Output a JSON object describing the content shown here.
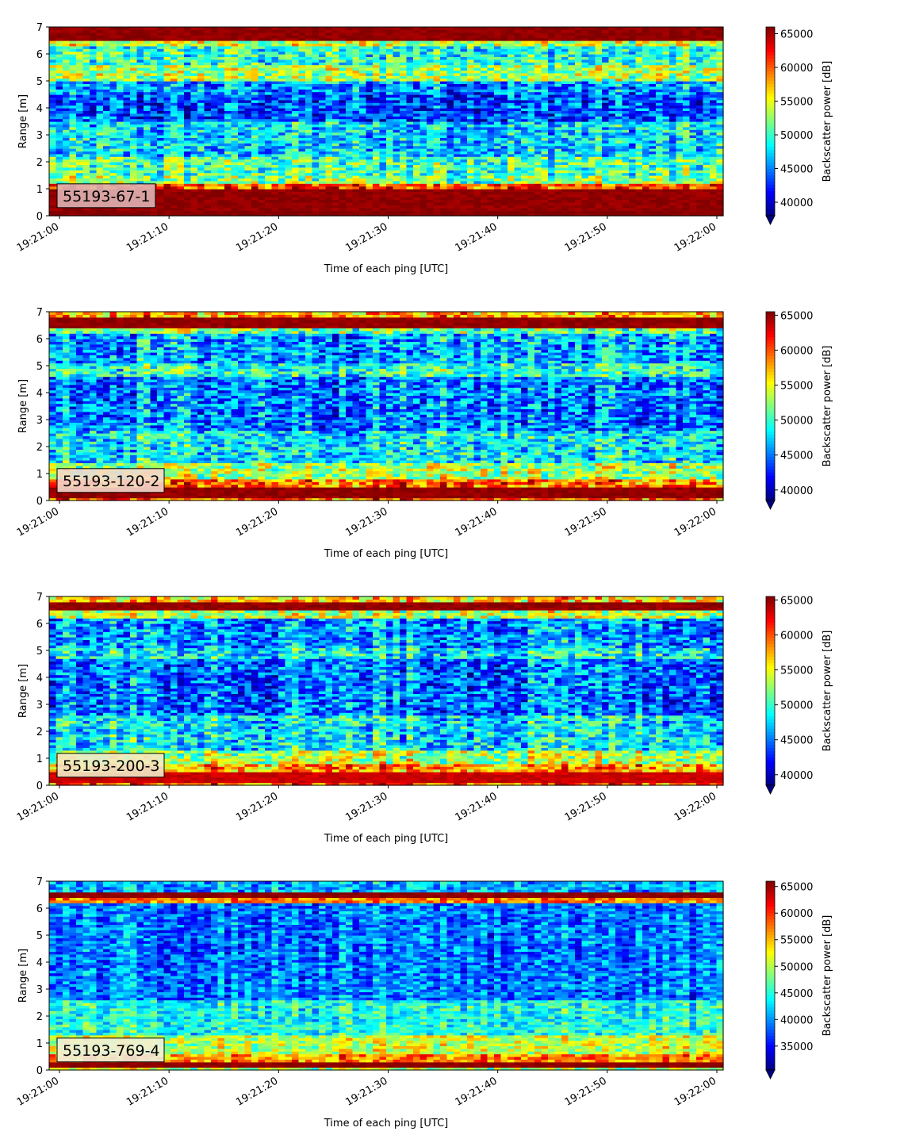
{
  "figure": {
    "colormap": "jet"
  },
  "chart_data": [
    {
      "type": "heatmap",
      "annotation": "55193-67-1",
      "annotation_box_color": "#dfb2b2",
      "xlabel": "Time of each ping [UTC]",
      "ylabel": "Range [m]",
      "ylim": [
        0,
        7
      ],
      "xlim": [
        "19:21:00",
        "19:22:00"
      ],
      "y_ticks": [
        "0",
        "1",
        "2",
        "3",
        "4",
        "5",
        "6",
        "7"
      ],
      "x_ticks": [
        "19:21:00",
        "19:21:10",
        "19:21:20",
        "19:21:30",
        "19:21:40",
        "19:21:50",
        "19:22:00"
      ],
      "colorbar": {
        "label": "Backscatter power [dB]",
        "range": [
          38000,
          66000
        ],
        "extend": "min",
        "ticks": [
          "40000",
          "45000",
          "50000",
          "55000",
          "60000",
          "65000"
        ]
      },
      "profile": [
        {
          "range": [
            0.0,
            0.2
          ],
          "value": 66000
        },
        {
          "range": [
            0.2,
            1.0
          ],
          "value": 65500
        },
        {
          "range": [
            1.0,
            1.2
          ],
          "value": 60500
        },
        {
          "range": [
            1.2,
            1.5
          ],
          "value": 52000
        },
        {
          "range": [
            1.5,
            2.2
          ],
          "value": 50500
        },
        {
          "range": [
            2.2,
            3.5
          ],
          "value": 47500
        },
        {
          "range": [
            3.5,
            4.5
          ],
          "value": 43500
        },
        {
          "range": [
            4.5,
            5.0
          ],
          "value": 45500
        },
        {
          "range": [
            5.0,
            5.6
          ],
          "value": 53000
        },
        {
          "range": [
            5.6,
            6.3
          ],
          "value": 49500
        },
        {
          "range": [
            6.3,
            6.5
          ],
          "value": 54000
        },
        {
          "range": [
            6.5,
            7.0
          ],
          "value": 65500
        }
      ]
    },
    {
      "type": "heatmap",
      "annotation": "55193-120-2",
      "annotation_box_color": "#f4d9cc",
      "xlabel": "Time of each ping [UTC]",
      "ylabel": "Range [m]",
      "ylim": [
        0,
        7
      ],
      "xlim": [
        "19:21:00",
        "19:22:00"
      ],
      "y_ticks": [
        "0",
        "1",
        "2",
        "3",
        "4",
        "5",
        "6",
        "7"
      ],
      "x_ticks": [
        "19:21:00",
        "19:21:10",
        "19:21:20",
        "19:21:30",
        "19:21:40",
        "19:21:50",
        "19:22:00"
      ],
      "colorbar": {
        "label": "Backscatter power [dB]",
        "range": [
          38500,
          65500
        ],
        "extend": "min",
        "ticks": [
          "40000",
          "45000",
          "50000",
          "55000",
          "60000",
          "65000"
        ]
      },
      "profile": [
        {
          "range": [
            0.0,
            0.1
          ],
          "value": 60000
        },
        {
          "range": [
            0.1,
            0.5
          ],
          "value": 65000
        },
        {
          "range": [
            0.5,
            0.8
          ],
          "value": 59500
        },
        {
          "range": [
            0.8,
            1.4
          ],
          "value": 53500
        },
        {
          "range": [
            1.4,
            2.6
          ],
          "value": 48500
        },
        {
          "range": [
            2.6,
            4.6
          ],
          "value": 45500
        },
        {
          "range": [
            4.6,
            5.1
          ],
          "value": 50000
        },
        {
          "range": [
            5.1,
            6.2
          ],
          "value": 46500
        },
        {
          "range": [
            6.2,
            6.4
          ],
          "value": 52000
        },
        {
          "range": [
            6.4,
            6.8
          ],
          "value": 65000
        },
        {
          "range": [
            6.8,
            7.0
          ],
          "value": 58000
        }
      ]
    },
    {
      "type": "heatmap",
      "annotation": "55193-200-3",
      "annotation_box_color": "#f1ebc8",
      "xlabel": "Time of each ping [UTC]",
      "ylabel": "Range [m]",
      "ylim": [
        0,
        7
      ],
      "xlim": [
        "19:21:00",
        "19:22:00"
      ],
      "y_ticks": [
        "0",
        "1",
        "2",
        "3",
        "4",
        "5",
        "6",
        "7"
      ],
      "x_ticks": [
        "19:21:00",
        "19:21:10",
        "19:21:20",
        "19:21:30",
        "19:21:40",
        "19:21:50",
        "19:22:00"
      ],
      "colorbar": {
        "label": "Backscatter power [dB]",
        "range": [
          38500,
          65500
        ],
        "extend": "min",
        "ticks": [
          "40000",
          "45000",
          "50000",
          "55000",
          "60000",
          "65000"
        ]
      },
      "profile": [
        {
          "range": [
            0.0,
            0.15
          ],
          "value": 60000
        },
        {
          "range": [
            0.15,
            0.5
          ],
          "value": 63500
        },
        {
          "range": [
            0.5,
            0.8
          ],
          "value": 58500
        },
        {
          "range": [
            0.8,
            1.3
          ],
          "value": 53500
        },
        {
          "range": [
            1.3,
            2.6
          ],
          "value": 48500
        },
        {
          "range": [
            2.6,
            4.7
          ],
          "value": 45000
        },
        {
          "range": [
            4.7,
            5.1
          ],
          "value": 49000
        },
        {
          "range": [
            5.1,
            6.2
          ],
          "value": 46000
        },
        {
          "range": [
            6.2,
            6.45
          ],
          "value": 54000
        },
        {
          "range": [
            6.45,
            6.8
          ],
          "value": 65000
        },
        {
          "range": [
            6.8,
            7.0
          ],
          "value": 56500
        }
      ]
    },
    {
      "type": "heatmap",
      "annotation": "55193-769-4",
      "annotation_box_color": "#eef0dc",
      "xlabel": "Time of each ping [UTC]",
      "ylabel": "Range [m]",
      "ylim": [
        0,
        7
      ],
      "xlim": [
        "19:21:00",
        "19:22:00"
      ],
      "y_ticks": [
        "0",
        "1",
        "2",
        "3",
        "4",
        "5",
        "6",
        "7"
      ],
      "x_ticks": [
        "19:21:00",
        "19:21:10",
        "19:21:20",
        "19:21:30",
        "19:21:40",
        "19:21:50",
        "19:22:00"
      ],
      "colorbar": {
        "label": "Backscatter power [dB]",
        "range": [
          30500,
          66000
        ],
        "extend": "min",
        "ticks": [
          "35000",
          "40000",
          "45000",
          "50000",
          "55000",
          "60000",
          "65000"
        ]
      },
      "profile": [
        {
          "range": [
            0.0,
            0.15
          ],
          "value": 50000
        },
        {
          "range": [
            0.15,
            0.35
          ],
          "value": 65500
        },
        {
          "range": [
            0.35,
            0.6
          ],
          "value": 57000
        },
        {
          "range": [
            0.6,
            1.3
          ],
          "value": 51000
        },
        {
          "range": [
            1.3,
            2.6
          ],
          "value": 44500
        },
        {
          "range": [
            2.6,
            6.2
          ],
          "value": 39000
        },
        {
          "range": [
            6.2,
            6.4
          ],
          "value": 57000
        },
        {
          "range": [
            6.4,
            6.6
          ],
          "value": 65500
        },
        {
          "range": [
            6.6,
            7.0
          ],
          "value": 41000
        }
      ]
    }
  ]
}
